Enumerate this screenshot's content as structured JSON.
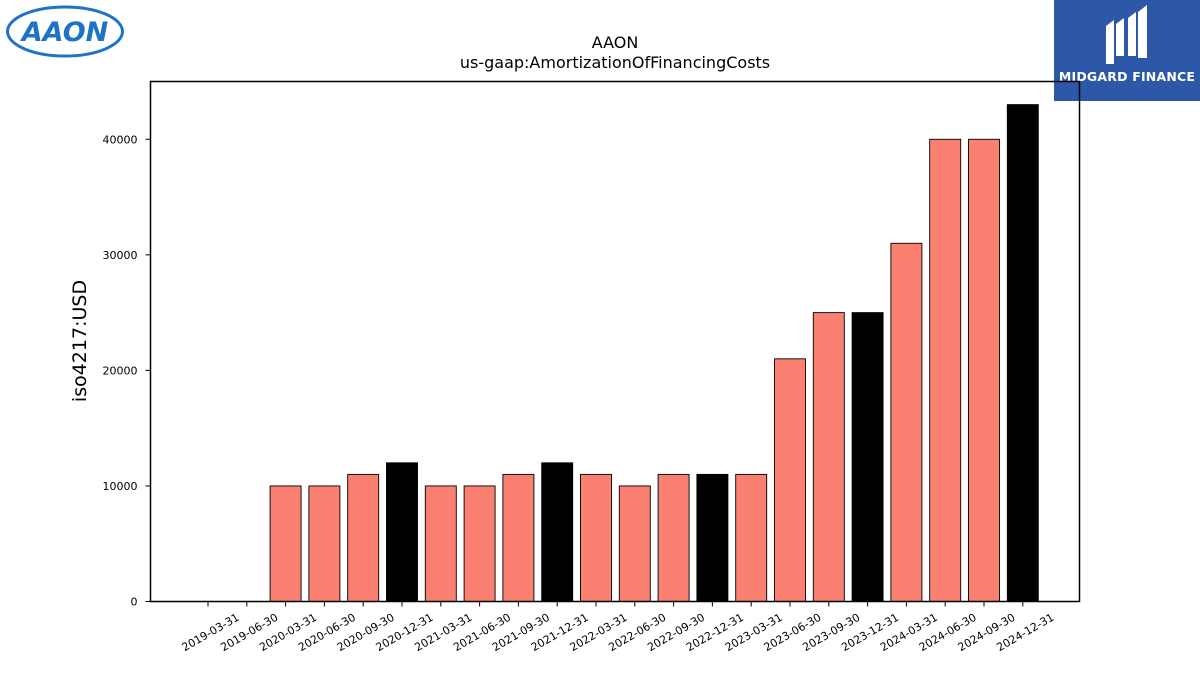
{
  "brand": {
    "company_logo_text": "AAON",
    "sponsor_logo_text": "MIDGARD FINANCE",
    "company_logo_color": "#1e73c8",
    "sponsor_bg_color": "#2d58a8"
  },
  "chart_data": {
    "type": "bar",
    "title": "AAON",
    "subtitle": "us-gaap:AmortizationOfFinancingCosts",
    "xlabel": "",
    "ylabel": "iso4217:USD",
    "ylim": [
      0,
      45000
    ],
    "yticks": [
      0,
      10000,
      20000,
      30000,
      40000
    ],
    "grid": false,
    "legend": "none",
    "colors": {
      "quarter": "#fa8072",
      "year_end": "#000000",
      "edge": "#000000"
    },
    "categories": [
      "2019-03-31",
      "2019-06-30",
      "2020-03-31",
      "2020-06-30",
      "2020-09-30",
      "2020-12-31",
      "2021-03-31",
      "2021-06-30",
      "2021-09-30",
      "2021-12-31",
      "2022-03-31",
      "2022-06-30",
      "2022-09-30",
      "2022-12-31",
      "2023-03-31",
      "2023-06-30",
      "2023-09-30",
      "2023-12-31",
      "2024-03-31",
      "2024-06-30",
      "2024-09-30",
      "2024-12-31"
    ],
    "values": [
      0,
      0,
      10000,
      10000,
      11000,
      12000,
      10000,
      10000,
      11000,
      12000,
      11000,
      10000,
      11000,
      11000,
      11000,
      21000,
      25000,
      25000,
      31000,
      40000,
      40000,
      43000
    ],
    "bar_color_keys": [
      "quarter",
      "quarter",
      "quarter",
      "quarter",
      "quarter",
      "year_end",
      "quarter",
      "quarter",
      "quarter",
      "year_end",
      "quarter",
      "quarter",
      "quarter",
      "year_end",
      "quarter",
      "quarter",
      "quarter",
      "year_end",
      "quarter",
      "quarter",
      "quarter",
      "year_end"
    ]
  }
}
